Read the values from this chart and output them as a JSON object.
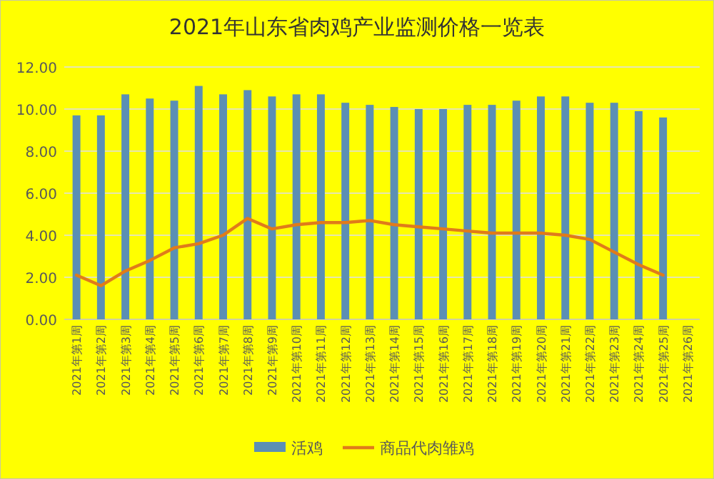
{
  "chart_data": {
    "type": "bar",
    "title": "2021年山东省肉鸡产业监测价格一览表",
    "categories": [
      "2021年第1周",
      "2021年第2周",
      "2021年第3周",
      "2021年第4周",
      "2021年第5周",
      "2021年第6周",
      "2021年第7周",
      "2021年第8周",
      "2021年第9周",
      "2021年第10周",
      "2021年第11周",
      "2021年第12周",
      "2021年第13周",
      "2021年第14周",
      "2021年第15周",
      "2021年第16周",
      "2021年第17周",
      "2021年第18周",
      "2021年第19周",
      "2021年第20周",
      "2021年第21周",
      "2021年第22周",
      "2021年第23周",
      "2021年第24周",
      "2021年第25周",
      "2021年第26周"
    ],
    "series": [
      {
        "name": "活鸡",
        "color": "#5b8fb4",
        "values": [
          9.7,
          9.7,
          10.7,
          10.5,
          10.4,
          11.1,
          10.7,
          10.9,
          10.6,
          10.7,
          10.7,
          10.3,
          10.2,
          10.1,
          10.0,
          10.0,
          10.2,
          10.2,
          10.4,
          10.6,
          10.6,
          10.3,
          10.3,
          9.9,
          9.6,
          null
        ]
      },
      {
        "name": "商品代肉雏鸡",
        "type": "line",
        "color": "#e07b1a",
        "values": [
          2.1,
          1.6,
          2.3,
          2.8,
          3.4,
          3.6,
          4.0,
          4.8,
          4.3,
          4.5,
          4.6,
          4.6,
          4.7,
          4.5,
          4.4,
          4.3,
          4.2,
          4.1,
          4.1,
          4.1,
          4.0,
          3.8,
          3.2,
          2.6,
          2.1,
          null
        ]
      }
    ],
    "ylim": [
      0,
      12
    ],
    "yticks": [
      {
        "value": 0,
        "label": "0.00"
      },
      {
        "value": 2,
        "label": "2.00"
      },
      {
        "value": 4,
        "label": "4.00"
      },
      {
        "value": 6,
        "label": "6.00"
      },
      {
        "value": 8,
        "label": "8.00"
      },
      {
        "value": 10,
        "label": "10.00"
      },
      {
        "value": 12,
        "label": "12.00"
      }
    ],
    "grid": "y",
    "legend": "bottom",
    "marker": "none",
    "line_style": "solid"
  }
}
